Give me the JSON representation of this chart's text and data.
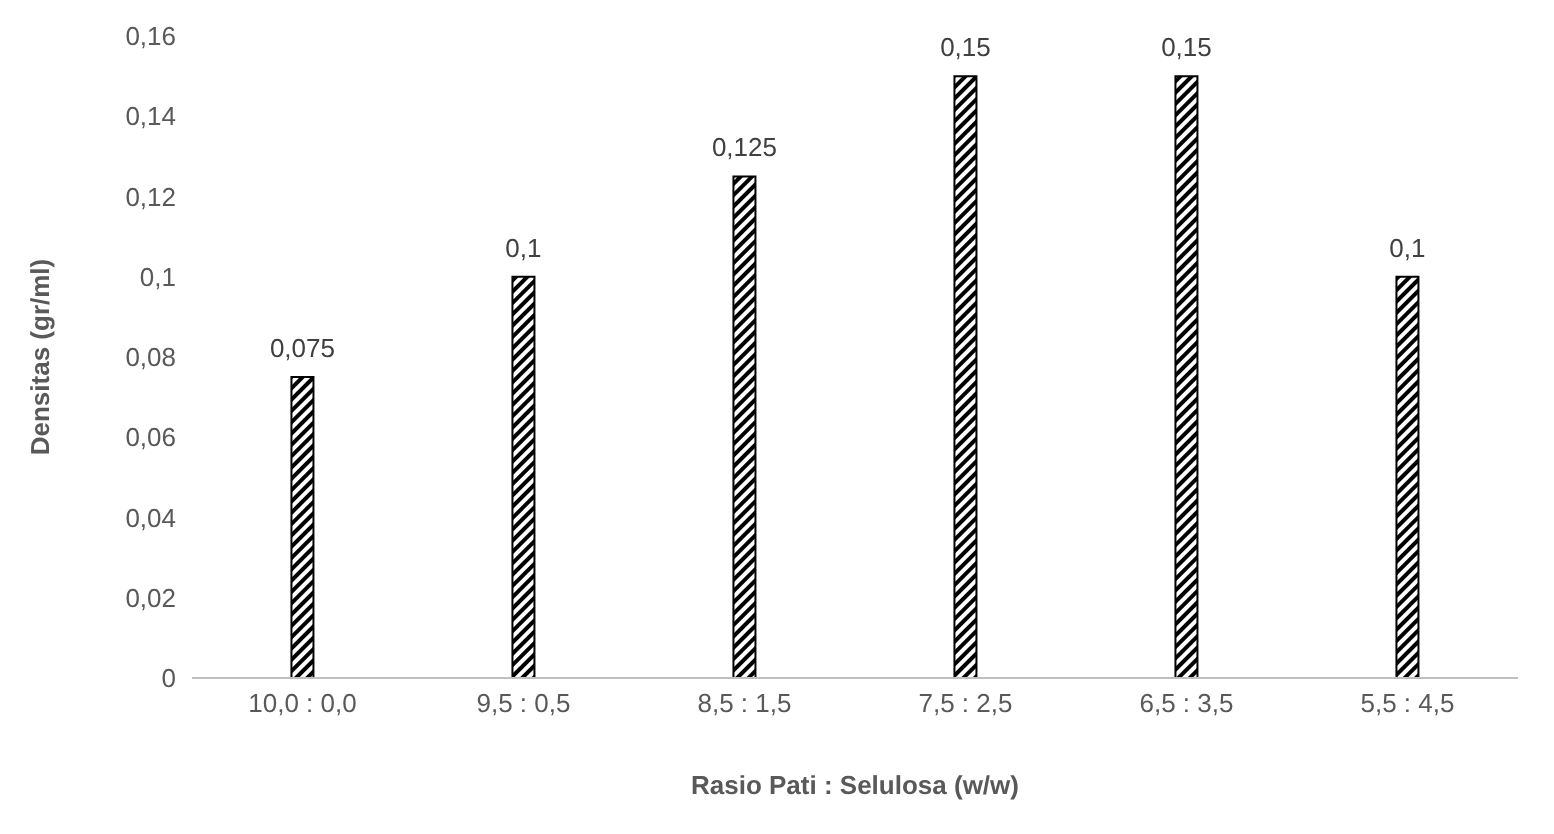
{
  "chart_data": {
    "type": "bar",
    "xlabel": "Rasio Pati : Selulosa (w/w)",
    "ylabel": "Densitas (gr/ml)",
    "categories": [
      "10,0 : 0,0",
      "9,5 : 0,5",
      "8,5 : 1,5",
      "7,5 : 2,5",
      "6,5 : 3,5",
      "5,5 : 4,5"
    ],
    "values": [
      0.075,
      0.1,
      0.125,
      0.15,
      0.15,
      0.1
    ],
    "value_labels": [
      "0,075",
      "0,1",
      "0,125",
      "0,15",
      "0,15",
      "0,1"
    ],
    "color": "#000000",
    "ylim": [
      0,
      0.16
    ],
    "yticks": [
      {
        "value": 0,
        "label": "0"
      },
      {
        "value": 0.02,
        "label": "0,02"
      },
      {
        "value": 0.04,
        "label": "0,04"
      },
      {
        "value": 0.06,
        "label": "0,06"
      },
      {
        "value": 0.08,
        "label": "0,08"
      },
      {
        "value": 0.1,
        "label": "0,1"
      },
      {
        "value": 0.12,
        "label": "0,12"
      },
      {
        "value": 0.14,
        "label": "0,14"
      },
      {
        "value": 0.16,
        "label": "0,16"
      }
    ],
    "grid": false,
    "legend": false
  }
}
